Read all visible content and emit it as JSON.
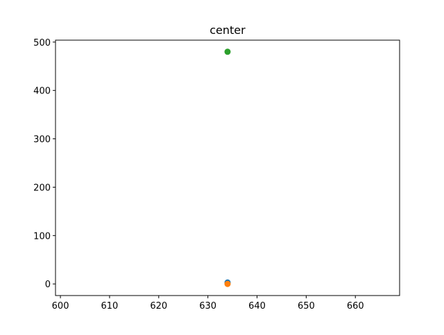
{
  "chart_data": {
    "type": "scatter",
    "title": "center",
    "xlabel": "",
    "ylabel": "",
    "xlim": [
      599,
      669
    ],
    "ylim": [
      -24,
      504
    ],
    "x_ticks": [
      600,
      610,
      620,
      630,
      640,
      650,
      660
    ],
    "y_ticks": [
      0,
      100,
      200,
      300,
      400,
      500
    ],
    "grid": false,
    "series": [
      {
        "color": "#1f77b4",
        "points": [
          [
            634,
            3
          ]
        ]
      },
      {
        "color": "#ff7f0e",
        "points": [
          [
            634,
            0
          ]
        ]
      },
      {
        "color": "#2ca02c",
        "points": [
          [
            634,
            480
          ]
        ]
      }
    ]
  }
}
